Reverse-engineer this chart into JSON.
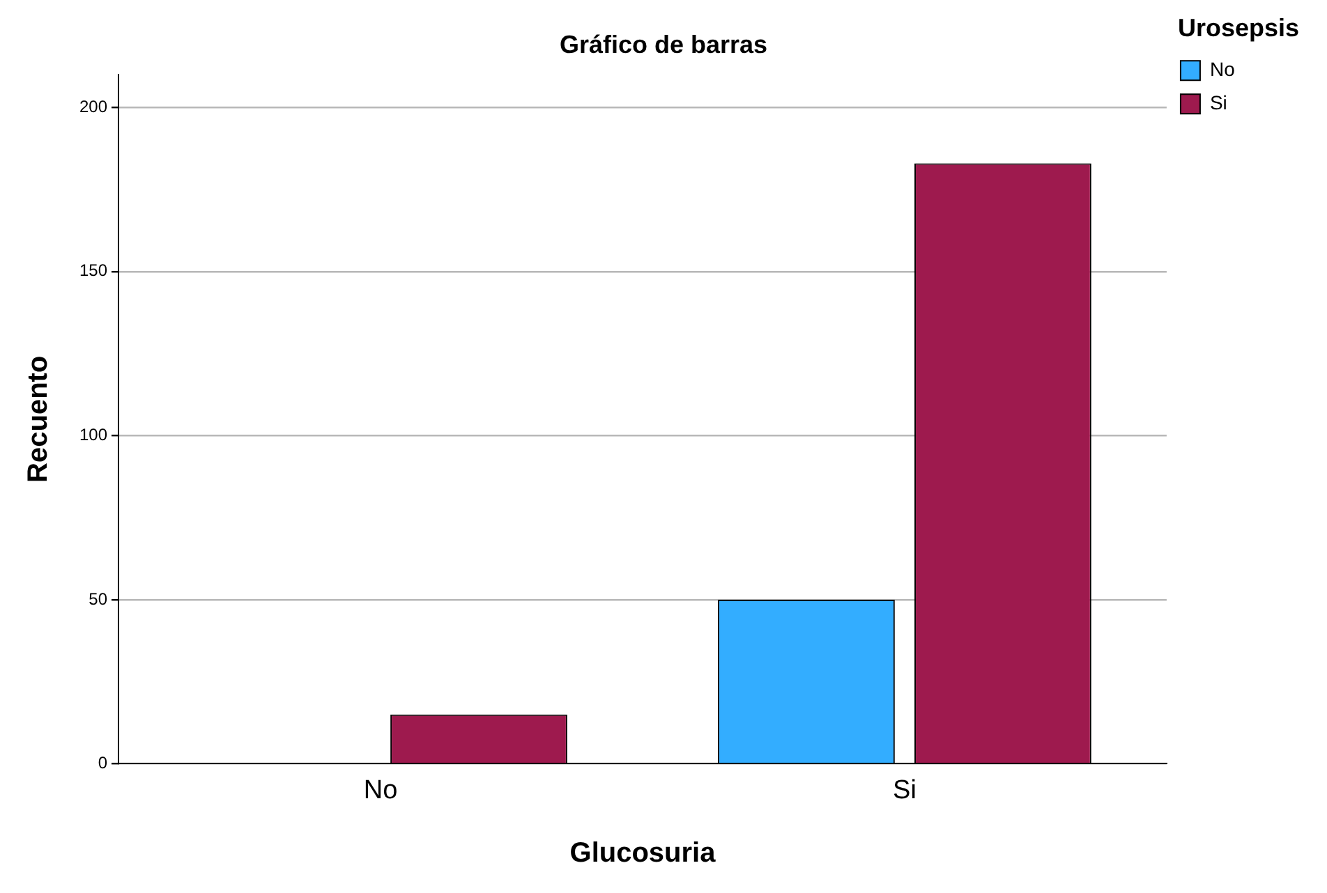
{
  "chart_data": {
    "type": "bar",
    "title": "Gráfico de barras",
    "xlabel": "Glucosuria",
    "ylabel": "Recuento",
    "legend_title": "Urosepsis",
    "categories": [
      "No",
      "Si"
    ],
    "series": [
      {
        "name": "No",
        "color": "#33adff",
        "values": [
          0,
          50
        ]
      },
      {
        "name": "Si",
        "color": "#9e1a4e",
        "values": [
          15,
          183
        ]
      }
    ],
    "ylim": [
      0,
      210
    ],
    "yticks": [
      0,
      50,
      100,
      150,
      200
    ],
    "grid": "y",
    "legend": "top right"
  }
}
